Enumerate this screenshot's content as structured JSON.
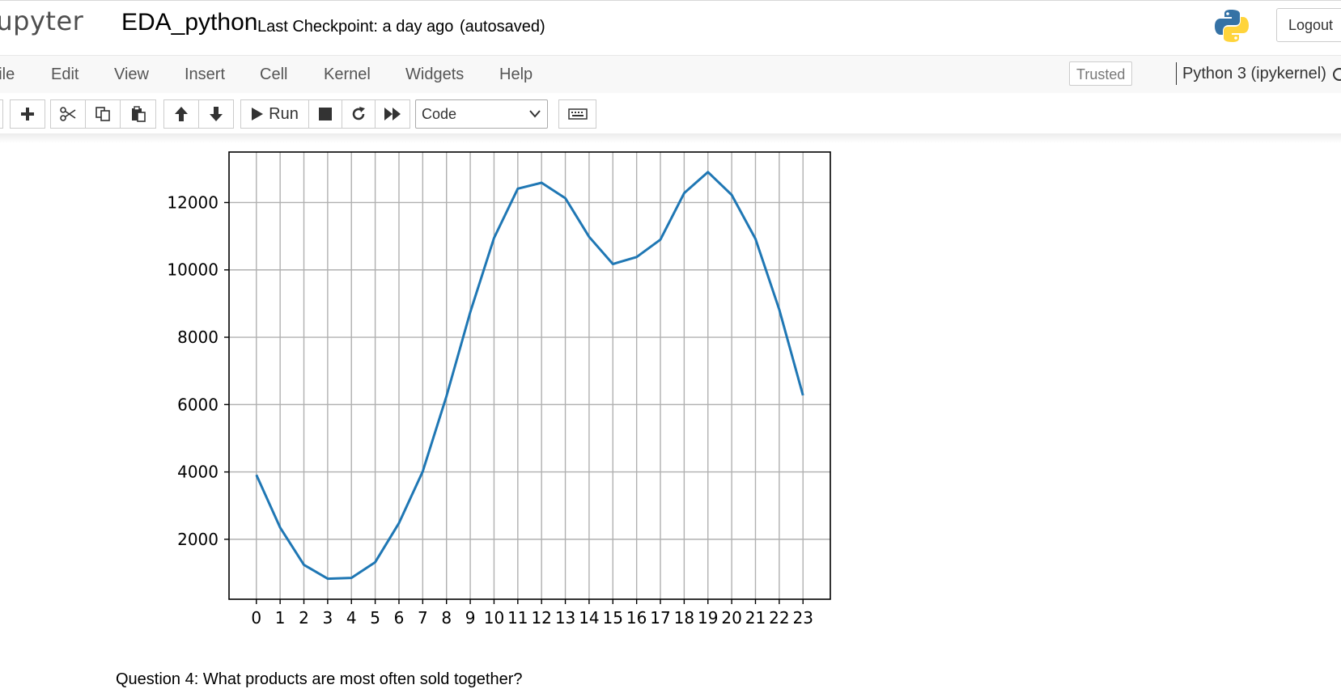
{
  "header": {
    "logo_text": "jupyter",
    "notebook_name": "EDA_python",
    "checkpoint_text": "Last Checkpoint: a day ago",
    "autosave_text": "(autosaved)",
    "logout_label": "Logout"
  },
  "menubar": {
    "items": [
      "File",
      "Edit",
      "View",
      "Insert",
      "Cell",
      "Kernel",
      "Widgets",
      "Help"
    ],
    "trusted_label": "Trusted",
    "kernel_name": "Python 3 (ipykernel)"
  },
  "toolbar": {
    "run_label": "Run",
    "cell_type": "Code",
    "icons": [
      "save-icon",
      "plus-icon",
      "scissors-icon",
      "copy-icon",
      "paste-icon",
      "arrow-up-icon",
      "arrow-down-icon",
      "play-icon",
      "stop-icon",
      "restart-icon",
      "fast-forward-icon",
      "keyboard-icon"
    ]
  },
  "chart_data": {
    "type": "line",
    "x": [
      0,
      1,
      2,
      3,
      4,
      5,
      6,
      7,
      8,
      9,
      10,
      11,
      12,
      13,
      14,
      15,
      16,
      17,
      18,
      19,
      20,
      21,
      22,
      23
    ],
    "series": [
      {
        "values": [
          3910,
          2350,
          1243,
          831,
          854,
          1321,
          2482,
          4011,
          6250,
          8748,
          10944,
          12411,
          12587,
          12129,
          10984,
          10175,
          10384,
          10899,
          12280,
          12905,
          12228,
          10921,
          8822,
          6275
        ],
        "color": "#1f77b4"
      }
    ],
    "xticks": [
      "0",
      "1",
      "2",
      "3",
      "4",
      "5",
      "6",
      "7",
      "8",
      "9",
      "10",
      "11",
      "12",
      "13",
      "14",
      "15",
      "16",
      "17",
      "18",
      "19",
      "20",
      "21",
      "22",
      "23"
    ],
    "yticks": [
      2000,
      4000,
      6000,
      8000,
      10000,
      12000
    ],
    "ylim": [
      220,
      13500
    ],
    "xlim": [
      -1.15,
      24.15
    ],
    "grid": true,
    "title": "",
    "xlabel": "",
    "ylabel": ""
  },
  "markdown": {
    "text": "Question 4: What products are most often sold together?"
  }
}
